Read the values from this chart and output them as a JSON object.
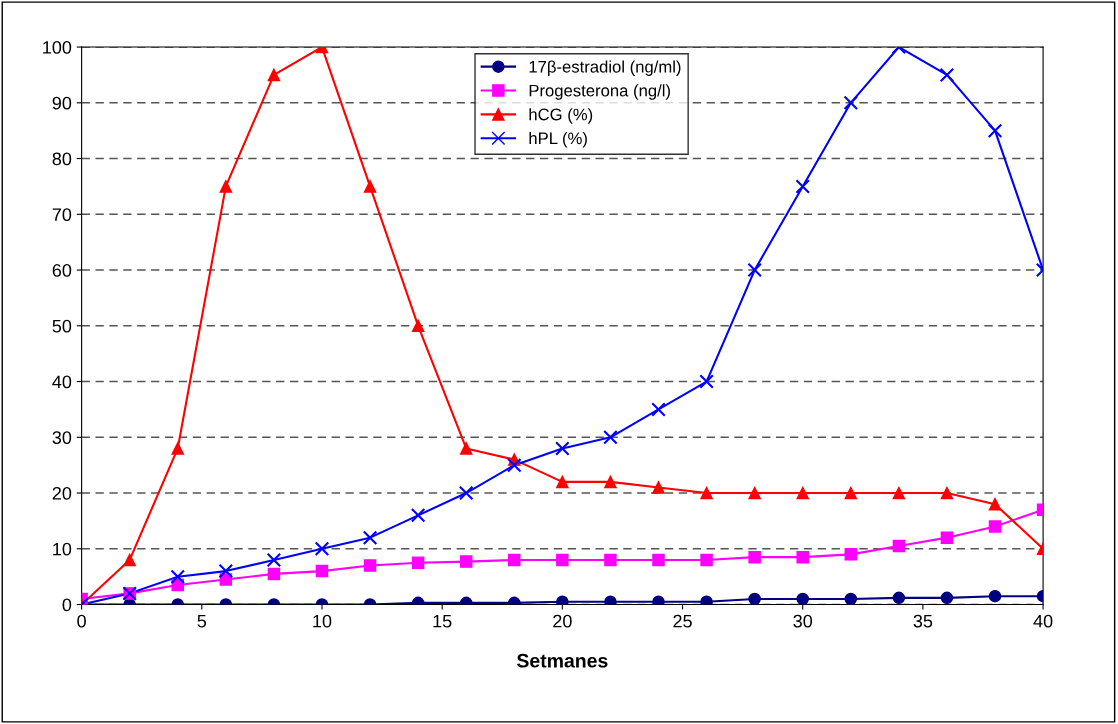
{
  "chart_data": {
    "type": "line",
    "xlabel": "Setmanes",
    "x": [
      0,
      2,
      4,
      6,
      8,
      10,
      12,
      14,
      16,
      18,
      20,
      22,
      24,
      26,
      28,
      30,
      32,
      34,
      36,
      38,
      40
    ],
    "series": [
      {
        "name": "17β-estradiol (ng/ml)",
        "color": "#000080",
        "marker": "circle",
        "values": [
          0,
          0,
          0,
          0,
          0,
          0,
          0,
          0.3,
          0.3,
          0.3,
          0.5,
          0.5,
          0.5,
          0.5,
          1,
          1,
          1,
          1.2,
          1.2,
          1.5,
          1.5
        ]
      },
      {
        "name": "Progesterona (ng/l)",
        "color": "#ff00ff",
        "marker": "square",
        "values": [
          1,
          2,
          3.5,
          4.5,
          5.5,
          6,
          7,
          7.5,
          7.7,
          8,
          8,
          8,
          8,
          8,
          8.5,
          8.5,
          9,
          10.5,
          12,
          14,
          17
        ]
      },
      {
        "name": "hCG (%)",
        "color": "#ff0000",
        "marker": "triangle",
        "values": [
          0,
          8,
          28,
          75,
          95,
          100,
          75,
          50,
          28,
          26,
          22,
          22,
          21,
          20,
          20,
          20,
          20,
          20,
          20,
          18,
          10
        ]
      },
      {
        "name": "hPL (%)",
        "color": "#0000ff",
        "marker": "cross",
        "values": [
          0,
          2,
          5,
          6,
          8,
          10,
          12,
          16,
          20,
          25,
          28,
          30,
          35,
          40,
          60,
          75,
          90,
          100,
          95,
          85,
          60
        ]
      }
    ],
    "xlim": [
      0,
      40
    ],
    "xticks": [
      0,
      5,
      10,
      15,
      20,
      25,
      30,
      35,
      40
    ],
    "ylim": [
      0,
      100
    ],
    "yticks": [
      0,
      10,
      20,
      30,
      40,
      50,
      60,
      70,
      80,
      90,
      100
    ],
    "grid": "y",
    "legend": "top"
  }
}
